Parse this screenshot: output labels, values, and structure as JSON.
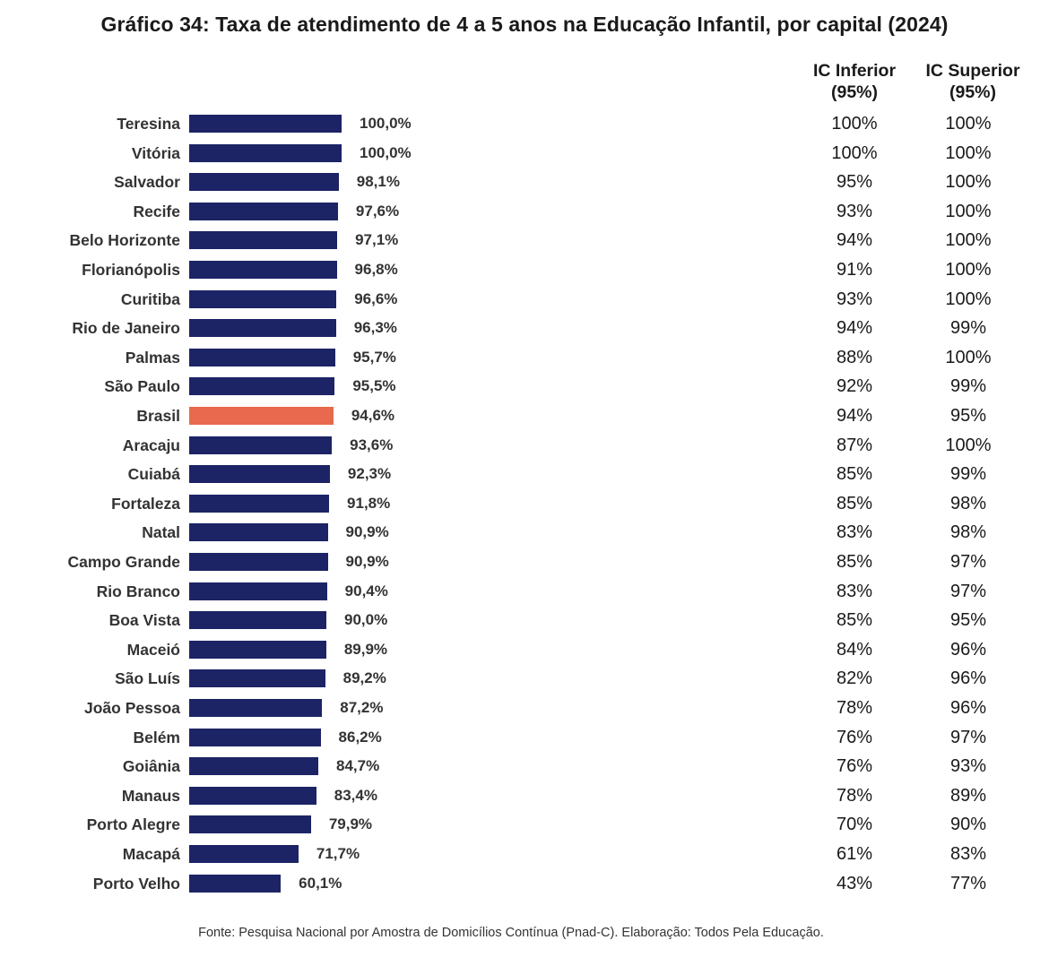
{
  "title": "Gráfico 34: Taxa de atendimento de 4 a 5 anos na Educação Infantil, por capital (2024)",
  "ci_headers": {
    "lower_line1": "IC Inferior",
    "lower_line2": "(95%)",
    "upper_line1": "IC Superior",
    "upper_line2": "(95%)"
  },
  "source": "Fonte: Pesquisa Nacional por Amostra de Domicílios Contínua (Pnad-C). Elaboração: Todos Pela Educação.",
  "colors": {
    "bar": "#1c2466",
    "highlight": "#e8694d"
  },
  "chart_data": {
    "type": "bar",
    "orientation": "horizontal",
    "xlim": [
      0,
      100
    ],
    "highlight_category": "Brasil",
    "categories": [
      "Teresina",
      "Vitória",
      "Salvador",
      "Recife",
      "Belo Horizonte",
      "Florianópolis",
      "Curitiba",
      "Rio de Janeiro",
      "Palmas",
      "São Paulo",
      "Brasil",
      "Aracaju",
      "Cuiabá",
      "Fortaleza",
      "Natal",
      "Campo Grande",
      "Rio Branco",
      "Boa Vista",
      "Maceió",
      "São Luís",
      "João Pessoa",
      "Belém",
      "Goiânia",
      "Manaus",
      "Porto Alegre",
      "Macapá",
      "Porto Velho"
    ],
    "values": [
      100.0,
      100.0,
      98.1,
      97.6,
      97.1,
      96.8,
      96.6,
      96.3,
      95.7,
      95.5,
      94.6,
      93.6,
      92.3,
      91.8,
      90.9,
      90.9,
      90.4,
      90.0,
      89.9,
      89.2,
      87.2,
      86.2,
      84.7,
      83.4,
      79.9,
      71.7,
      60.1
    ],
    "value_labels": [
      "100,0%",
      "100,0%",
      "98,1%",
      "97,6%",
      "97,1%",
      "96,8%",
      "96,6%",
      "96,3%",
      "95,7%",
      "95,5%",
      "94,6%",
      "93,6%",
      "92,3%",
      "91,8%",
      "90,9%",
      "90,9%",
      "90,4%",
      "90,0%",
      "89,9%",
      "89,2%",
      "87,2%",
      "86,2%",
      "84,7%",
      "83,4%",
      "79,9%",
      "71,7%",
      "60,1%"
    ],
    "ci_lower": [
      "100%",
      "100%",
      "95%",
      "93%",
      "94%",
      "91%",
      "93%",
      "94%",
      "88%",
      "92%",
      "94%",
      "87%",
      "85%",
      "85%",
      "83%",
      "85%",
      "83%",
      "85%",
      "84%",
      "82%",
      "78%",
      "76%",
      "76%",
      "78%",
      "70%",
      "61%",
      "43%"
    ],
    "ci_upper": [
      "100%",
      "100%",
      "100%",
      "100%",
      "100%",
      "100%",
      "100%",
      "99%",
      "100%",
      "99%",
      "95%",
      "100%",
      "99%",
      "98%",
      "98%",
      "97%",
      "97%",
      "95%",
      "96%",
      "96%",
      "96%",
      "97%",
      "93%",
      "89%",
      "90%",
      "83%",
      "77%"
    ]
  }
}
